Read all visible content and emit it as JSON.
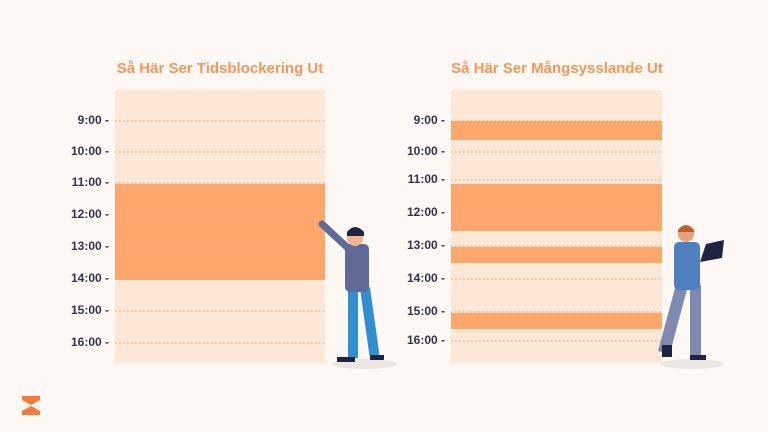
{
  "panels": [
    {
      "title": "Så Här Ser Tidsblockering Ut",
      "times": [
        "9:00 -",
        "10:00 -",
        "11:00 -",
        "12:00 -",
        "13:00 -",
        "14:00 -",
        "15:00 -",
        "16:00 -"
      ]
    },
    {
      "title": "Så Här Ser Mångsysslande Ut",
      "times": [
        "9:00 -",
        "10:00 -",
        "11:00 -",
        "12:00 -",
        "13:00 -",
        "14:00 -",
        "15:00 -",
        "16:00 -"
      ]
    }
  ]
}
